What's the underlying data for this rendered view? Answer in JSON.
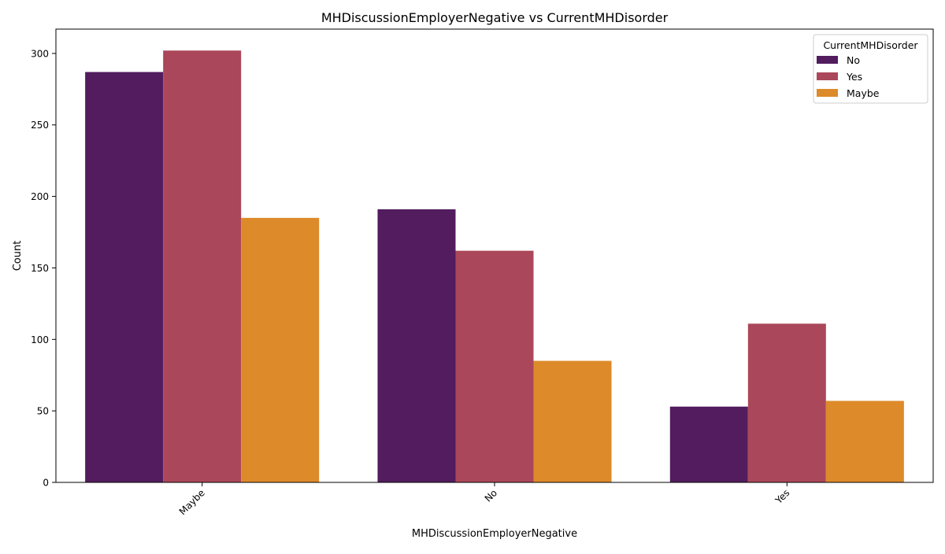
{
  "chart_data": {
    "type": "bar",
    "title": "MHDiscussionEmployerNegative vs CurrentMHDisorder",
    "xlabel": "MHDiscussionEmployerNegative",
    "ylabel": "Count",
    "categories": [
      "Maybe",
      "No",
      "Yes"
    ],
    "series": [
      {
        "name": "No",
        "color": "#521c5e",
        "values": [
          287,
          191,
          53
        ]
      },
      {
        "name": "Yes",
        "color": "#ab475a",
        "values": [
          302,
          162,
          111
        ]
      },
      {
        "name": "Maybe",
        "color": "#dd8a2a",
        "values": [
          185,
          85,
          57
        ]
      }
    ],
    "ylim": [
      0,
      317
    ],
    "yticks": [
      0,
      50,
      100,
      150,
      200,
      250,
      300
    ],
    "grid": false,
    "legend": {
      "title": "CurrentMHDisorder",
      "position": "top-right"
    }
  }
}
